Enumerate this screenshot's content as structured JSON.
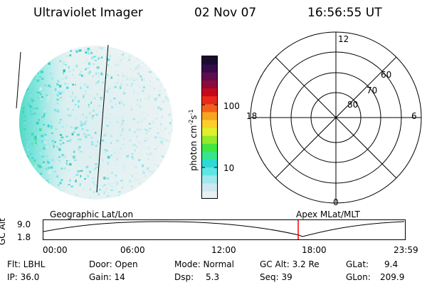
{
  "header": {
    "instrument": "Ultraviolet Imager",
    "date": "02 Nov 07",
    "time": "16:56:55 UT"
  },
  "colorbar": {
    "unit_label": "photon cm-2s-1",
    "tick_labels": [
      "100",
      "10"
    ],
    "colors": [
      "#e8f0f4",
      "#cde8ee",
      "#9ee8ee",
      "#5ee6e6",
      "#2fd9d4",
      "#37e48c",
      "#41e641",
      "#93ea2c",
      "#dff02c",
      "#fbcf2a",
      "#f7a41f",
      "#f3601b",
      "#e82a1b",
      "#c4081d",
      "#8a0a3d",
      "#5e0c4e",
      "#340a4a",
      "#1b0a30"
    ]
  },
  "polar_plot": {
    "mlt_labels": {
      "top": "12",
      "left": "18",
      "right": "6",
      "bottom": "0"
    },
    "lat_labels": [
      "60",
      "70",
      "80"
    ]
  },
  "altitude_plot": {
    "y_axis_label": "GC Alt",
    "y_ticks": [
      "9.0",
      "1.8"
    ],
    "x_ticks": [
      "00:00",
      "06:00",
      "12:00",
      "18:00",
      "23:59"
    ],
    "left_caption": "Geographic Lat/Lon",
    "right_caption": "Apex  MLat/MLT",
    "marker_color": "#ff0000"
  },
  "info": {
    "flt": "Flt: LBHL",
    "ip": "IP: 36.0",
    "door": "Door: Open",
    "gain": "Gain: 14",
    "mode": "Mode: Normal",
    "dsp_label": "Dsp:",
    "dsp_value": "5.3",
    "gc_alt": "GC Alt: 3.2 Re",
    "seq": "Seq: 39",
    "glat_label": "GLat:",
    "glat_value": "9.4",
    "glon_label": "GLon:",
    "glon_value": "209.9"
  }
}
